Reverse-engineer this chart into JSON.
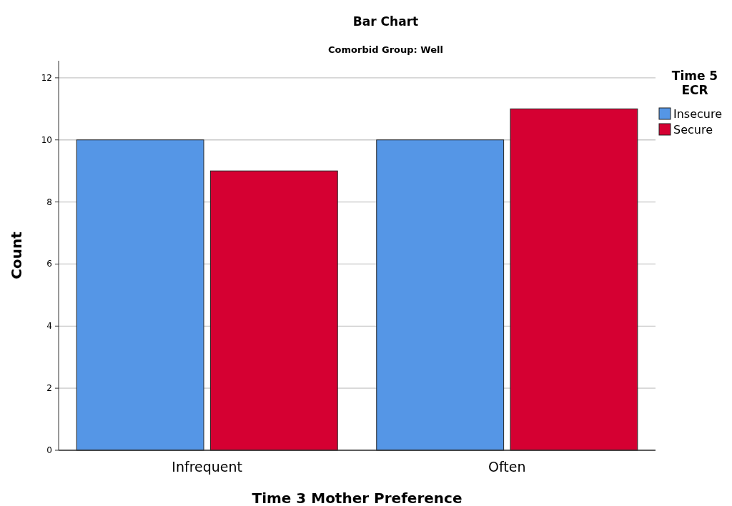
{
  "chart_data": {
    "type": "bar",
    "title": "Bar Chart",
    "subtitle": "Comorbid Group: Well",
    "xlabel": "Time 3 Mother Preference",
    "ylabel": "Count",
    "legend_title": "Time 5 ECR",
    "categories": [
      "Infrequent",
      "Often"
    ],
    "series": [
      {
        "name": "Insecure",
        "color": "#5596e6",
        "values": [
          10,
          10
        ]
      },
      {
        "name": "Secure",
        "color": "#d50032",
        "values": [
          9,
          11
        ]
      }
    ],
    "ylim": [
      0,
      12.55
    ],
    "yticks": [
      0,
      2,
      4,
      6,
      8,
      10,
      12
    ],
    "grid": "y",
    "legend": "top right"
  }
}
